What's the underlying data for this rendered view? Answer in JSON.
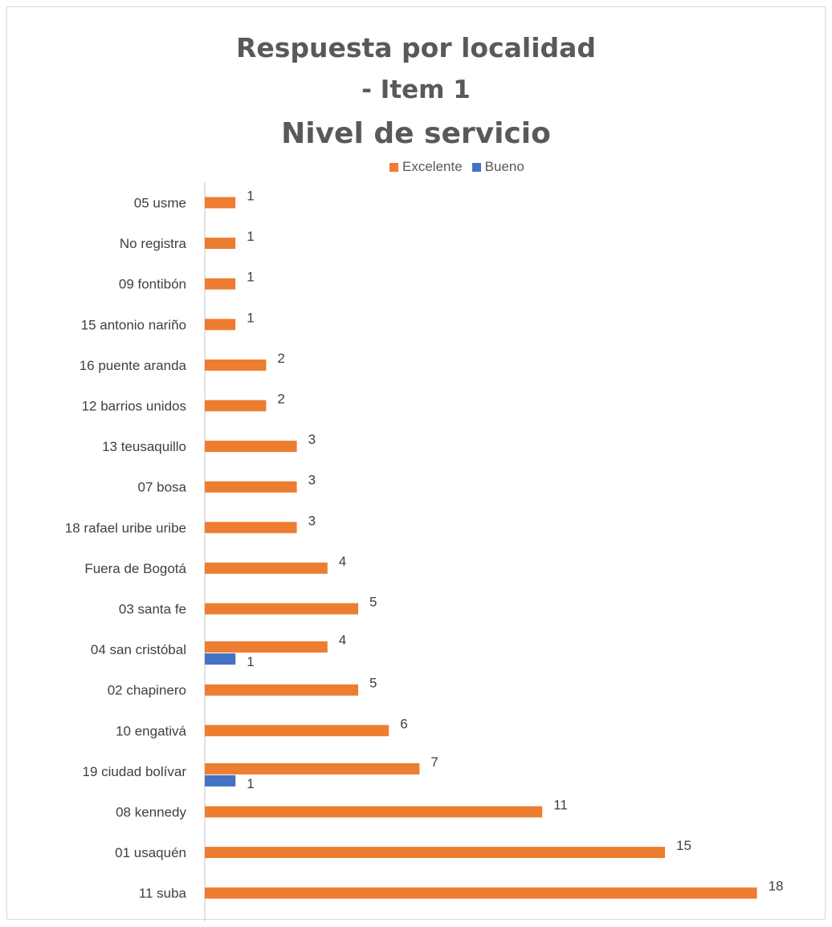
{
  "chart_data": {
    "type": "bar",
    "orientation": "horizontal",
    "title": [
      "Respuesta por localidad",
      "- Item 1",
      "Nivel de servicio"
    ],
    "categories": [
      "05  usme",
      "No registra",
      "09  fontibón",
      "15  antonio nariño",
      "16  puente aranda",
      "12  barrios unidos",
      "13  teusaquillo",
      "07  bosa",
      "18  rafael uribe uribe",
      "Fuera de Bogotá",
      "03  santa fe",
      "04  san cristóbal",
      "02  chapinero",
      "10  engativá",
      "19  ciudad bolívar",
      "08  kennedy",
      "01  usaquén",
      "11  suba"
    ],
    "series": [
      {
        "name": "Excelente",
        "color": "#ed7d31",
        "values": [
          1,
          1,
          1,
          1,
          2,
          2,
          3,
          3,
          3,
          4,
          5,
          4,
          5,
          6,
          7,
          11,
          15,
          18
        ]
      },
      {
        "name": "Bueno",
        "color": "#4472c4",
        "values": [
          null,
          null,
          null,
          null,
          null,
          null,
          null,
          null,
          null,
          null,
          null,
          1,
          null,
          null,
          1,
          null,
          null,
          null
        ]
      }
    ],
    "xlim": [
      0,
      18
    ],
    "grid": false,
    "legend_position": "top",
    "data_labels": true
  }
}
